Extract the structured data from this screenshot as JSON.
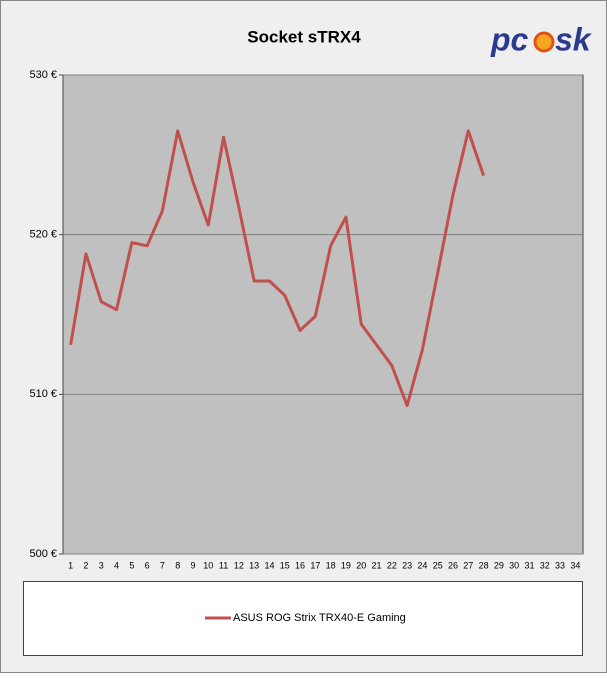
{
  "chart_data": {
    "type": "line",
    "title": "Socket sTRX4",
    "logo_left": "pc",
    "logo_right": "sk",
    "categories": [
      "1",
      "2",
      "3",
      "4",
      "5",
      "6",
      "7",
      "8",
      "9",
      "10",
      "11",
      "12",
      "13",
      "14",
      "15",
      "16",
      "17",
      "18",
      "19",
      "20",
      "21",
      "22",
      "23",
      "24",
      "25",
      "26",
      "27",
      "28",
      "29",
      "30",
      "31",
      "32",
      "33",
      "34"
    ],
    "series": [
      {
        "name": "ASUS ROG Strix TRX40-E Gaming",
        "color": "#c0504d",
        "values": [
          513.1,
          518.8,
          515.8,
          515.3,
          519.5,
          519.3,
          521.5,
          526.5,
          523.3,
          520.6,
          526.1,
          521.7,
          517.1,
          517.1,
          516.2,
          514.0,
          514.9,
          519.3,
          521.1,
          514.4,
          513.1,
          511.8,
          509.3,
          512.8,
          517.6,
          522.5,
          526.5,
          523.7,
          null,
          null,
          null,
          null,
          null,
          null
        ]
      }
    ],
    "ylim": [
      500,
      530
    ],
    "yticks": [
      {
        "value": 500,
        "label": "500 €"
      },
      {
        "value": 510,
        "label": "510 €"
      },
      {
        "value": 520,
        "label": "520 €"
      },
      {
        "value": 530,
        "label": "530 €"
      }
    ],
    "grid": true,
    "legend": "bottom"
  }
}
